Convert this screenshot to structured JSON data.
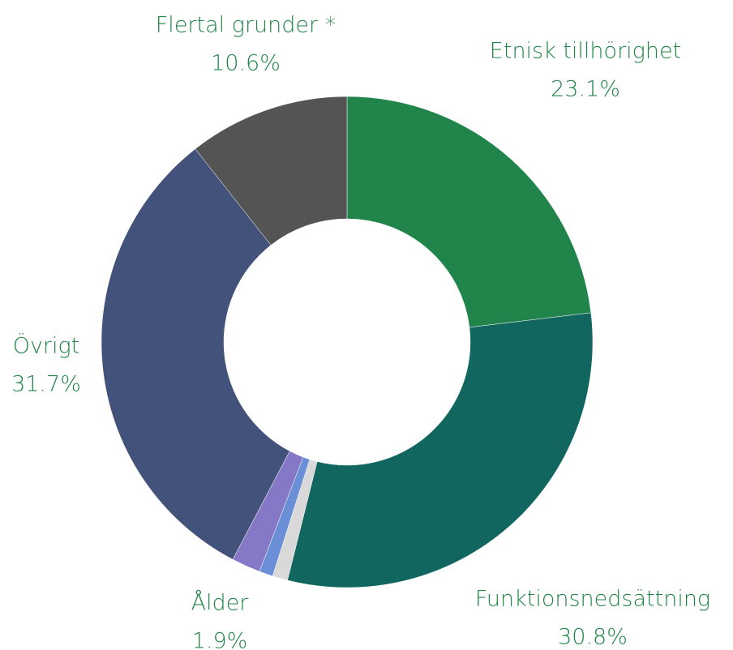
{
  "chart_data": {
    "type": "donut",
    "categories": [
      "Etnisk tillhörighet",
      "Funktionsnedsättning",
      null,
      null,
      "Ålder",
      "Övrigt",
      "Flertal grunder *"
    ],
    "values": [
      23.1,
      30.8,
      1.0,
      0.9,
      1.9,
      31.7,
      10.6
    ],
    "value_labels": [
      "23.1%",
      "30.8%",
      null,
      null,
      "1.9%",
      "31.7%",
      "10.6%"
    ],
    "colors": [
      "#21844a",
      "#116660",
      "#d9d9d9",
      "#6a8fd6",
      "#8478c7",
      "#43527a",
      "#545454"
    ],
    "label_color": "#218547"
  }
}
